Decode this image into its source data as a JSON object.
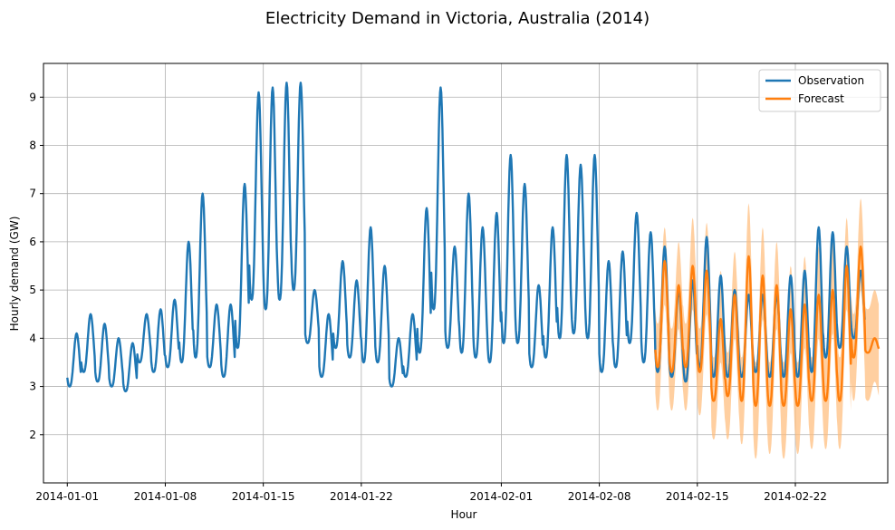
{
  "chart_data": {
    "type": "line",
    "title": "Electricity Demand in Victoria, Australia (2014)",
    "xlabel": "Hour",
    "ylabel": "Hourly demand (GW)",
    "x_range": [
      "2014-01-01",
      "2014-02-27"
    ],
    "ylim": [
      1.0,
      9.7
    ],
    "grid": true,
    "legend_position": "top-right",
    "x_ticks": [
      "2014-01-01",
      "2014-01-08",
      "2014-01-15",
      "2014-01-22",
      "2014-02-01",
      "2014-02-08",
      "2014-02-15",
      "2014-02-22"
    ],
    "y_ticks": [
      2,
      3,
      4,
      5,
      6,
      7,
      8,
      9
    ],
    "series": [
      {
        "name": "Observation",
        "color": "#1f77b4",
        "x": [
          "2014-01-01",
          "2014-01-02",
          "2014-01-03",
          "2014-01-04",
          "2014-01-05",
          "2014-01-06",
          "2014-01-07",
          "2014-01-08",
          "2014-01-09",
          "2014-01-10",
          "2014-01-11",
          "2014-01-12",
          "2014-01-13",
          "2014-01-14",
          "2014-01-15",
          "2014-01-16",
          "2014-01-17",
          "2014-01-18",
          "2014-01-19",
          "2014-01-20",
          "2014-01-21",
          "2014-01-22",
          "2014-01-23",
          "2014-01-24",
          "2014-01-25",
          "2014-01-26",
          "2014-01-27",
          "2014-01-28",
          "2014-01-29",
          "2014-01-30",
          "2014-01-31",
          "2014-02-01",
          "2014-02-02",
          "2014-02-03",
          "2014-02-04",
          "2014-02-05",
          "2014-02-06",
          "2014-02-07",
          "2014-02-08",
          "2014-02-09",
          "2014-02-10",
          "2014-02-11",
          "2014-02-12",
          "2014-02-13",
          "2014-02-14",
          "2014-02-15",
          "2014-02-16",
          "2014-02-17",
          "2014-02-18",
          "2014-02-19",
          "2014-02-20",
          "2014-02-21",
          "2014-02-22",
          "2014-02-23",
          "2014-02-24",
          "2014-02-25",
          "2014-02-26"
        ],
        "daily_max": [
          4.1,
          4.5,
          4.3,
          4.0,
          3.9,
          4.5,
          4.6,
          4.8,
          6.0,
          7.0,
          4.7,
          4.7,
          7.2,
          9.1,
          9.2,
          9.3,
          9.3,
          5.0,
          4.5,
          5.6,
          5.2,
          6.3,
          5.5,
          4.0,
          4.5,
          6.7,
          9.2,
          5.9,
          7.0,
          6.3,
          6.6,
          7.8,
          7.2,
          5.1,
          6.3,
          7.8,
          7.6,
          7.8,
          5.6,
          5.8,
          6.6,
          6.2,
          5.9,
          5.0,
          5.2,
          6.1,
          5.3,
          5.0,
          4.9,
          4.9,
          4.9,
          5.3,
          5.4,
          6.3,
          6.2,
          5.9,
          5.4
        ],
        "daily_min": [
          3.0,
          3.3,
          3.1,
          3.0,
          2.9,
          3.5,
          3.3,
          3.4,
          3.5,
          3.6,
          3.4,
          3.2,
          3.8,
          4.8,
          4.6,
          4.8,
          5.0,
          3.9,
          3.2,
          3.8,
          3.6,
          3.5,
          3.5,
          3.0,
          3.2,
          3.7,
          4.6,
          3.8,
          3.7,
          3.6,
          3.5,
          3.9,
          3.9,
          3.4,
          3.6,
          4.0,
          4.1,
          4.0,
          3.3,
          3.4,
          3.9,
          3.5,
          3.3,
          3.2,
          3.1,
          3.4,
          3.2,
          3.2,
          3.2,
          3.3,
          3.2,
          3.2,
          3.2,
          3.3,
          3.6,
          3.8,
          4.0
        ]
      },
      {
        "name": "Forecast",
        "color": "#ff7f0e",
        "band_color": "#ffbb78",
        "x": [
          "2014-02-12",
          "2014-02-13",
          "2014-02-14",
          "2014-02-15",
          "2014-02-16",
          "2014-02-17",
          "2014-02-18",
          "2014-02-19",
          "2014-02-20",
          "2014-02-21",
          "2014-02-22",
          "2014-02-23",
          "2014-02-24",
          "2014-02-25",
          "2014-02-26",
          "2014-02-27"
        ],
        "daily_max": [
          5.6,
          5.1,
          5.5,
          5.4,
          4.4,
          4.9,
          5.7,
          5.3,
          5.1,
          4.6,
          4.7,
          4.9,
          5.0,
          5.5,
          5.9,
          4.0
        ],
        "daily_min": [
          3.4,
          3.3,
          3.4,
          3.3,
          2.7,
          2.8,
          2.7,
          2.6,
          2.6,
          2.6,
          2.6,
          2.7,
          2.7,
          2.7,
          3.6,
          3.7
        ],
        "band_upper_max": [
          6.3,
          6.0,
          6.5,
          6.4,
          5.4,
          5.8,
          6.8,
          6.3,
          6.0,
          5.5,
          5.7,
          5.9,
          6.1,
          6.5,
          6.9,
          5.0
        ],
        "band_lower_min": [
          2.5,
          2.5,
          2.5,
          2.4,
          1.9,
          1.9,
          1.8,
          1.5,
          1.6,
          1.5,
          1.6,
          1.7,
          1.7,
          1.7,
          2.7,
          2.7
        ]
      }
    ]
  }
}
